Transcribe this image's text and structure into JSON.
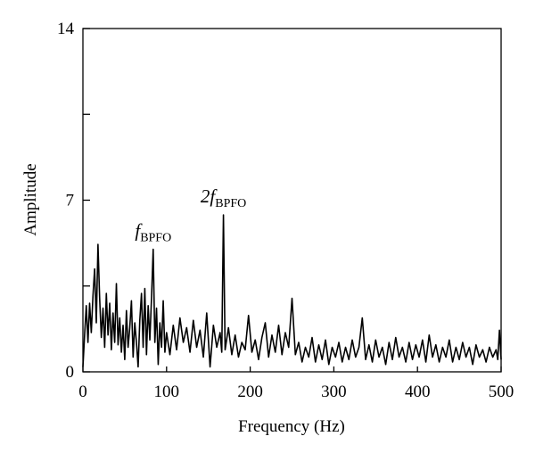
{
  "chart_data": {
    "type": "line",
    "x_label": "Frequency (Hz)",
    "y_label": "Amplitude",
    "x": [
      0,
      2,
      4,
      6,
      8,
      10,
      12,
      14,
      16,
      18,
      20,
      22,
      24,
      26,
      28,
      30,
      32,
      34,
      36,
      38,
      40,
      42,
      44,
      46,
      48,
      50,
      52,
      54,
      56,
      58,
      60,
      62,
      64,
      66,
      68,
      70,
      72,
      74,
      76,
      78,
      80,
      82,
      84,
      86,
      88,
      90,
      92,
      94,
      96,
      98,
      100,
      104,
      108,
      112,
      116,
      120,
      124,
      128,
      132,
      136,
      140,
      144,
      148,
      152,
      156,
      160,
      164,
      166,
      168,
      170,
      174,
      178,
      182,
      186,
      190,
      194,
      198,
      202,
      206,
      210,
      214,
      218,
      222,
      226,
      230,
      234,
      238,
      242,
      246,
      250,
      254,
      258,
      262,
      266,
      270,
      274,
      278,
      282,
      286,
      290,
      294,
      298,
      302,
      306,
      310,
      314,
      318,
      322,
      326,
      330,
      334,
      338,
      342,
      346,
      350,
      354,
      358,
      362,
      366,
      370,
      374,
      378,
      382,
      386,
      390,
      394,
      398,
      402,
      406,
      410,
      414,
      418,
      422,
      426,
      430,
      434,
      438,
      442,
      446,
      450,
      454,
      458,
      462,
      466,
      470,
      474,
      478,
      482,
      486,
      490,
      494,
      496,
      498,
      500
    ],
    "values": [
      0.2,
      1.5,
      2.7,
      1.2,
      2.8,
      1.6,
      3.1,
      4.2,
      2.0,
      5.2,
      3.0,
      1.4,
      2.6,
      1.0,
      3.2,
      1.5,
      2.8,
      0.9,
      2.4,
      1.2,
      3.6,
      1.1,
      2.2,
      0.8,
      1.9,
      0.5,
      2.5,
      1.0,
      1.8,
      2.9,
      0.6,
      2.0,
      1.2,
      0.2,
      2.1,
      3.2,
      1.0,
      3.4,
      0.7,
      2.7,
      1.3,
      3.0,
      5.0,
      1.2,
      2.6,
      0.3,
      2.0,
      1.0,
      2.9,
      0.8,
      1.6,
      0.7,
      1.9,
      0.9,
      2.2,
      1.2,
      1.8,
      0.8,
      2.1,
      1.0,
      1.7,
      0.6,
      2.4,
      0.2,
      1.9,
      1.0,
      1.6,
      0.8,
      6.4,
      0.9,
      1.8,
      0.7,
      1.5,
      0.6,
      1.2,
      0.9,
      2.3,
      0.8,
      1.3,
      0.5,
      1.4,
      2.0,
      0.6,
      1.5,
      0.8,
      1.9,
      0.7,
      1.6,
      1.0,
      3.0,
      0.7,
      1.2,
      0.4,
      1.0,
      0.6,
      1.4,
      0.4,
      1.1,
      0.5,
      1.3,
      0.3,
      1.0,
      0.6,
      1.2,
      0.4,
      1.0,
      0.5,
      1.3,
      0.6,
      1.0,
      2.2,
      0.5,
      1.1,
      0.4,
      1.3,
      0.6,
      1.0,
      0.3,
      1.2,
      0.5,
      1.4,
      0.6,
      1.0,
      0.4,
      1.2,
      0.5,
      1.1,
      0.6,
      1.3,
      0.4,
      1.5,
      0.6,
      1.1,
      0.4,
      1.0,
      0.6,
      1.3,
      0.4,
      1.0,
      0.5,
      1.2,
      0.6,
      1.0,
      0.3,
      1.1,
      0.6,
      0.9,
      0.4,
      1.0,
      0.6,
      0.9,
      0.5,
      1.7,
      0.5
    ],
    "color": "#000000",
    "xlim": [
      0,
      500
    ],
    "xticks": [
      0,
      100,
      200,
      300,
      400,
      500
    ],
    "ylim": [
      0,
      14
    ],
    "yticks": [
      0,
      7,
      14
    ],
    "yminor_ticks": [
      3.5,
      10.5
    ],
    "annotations": [
      {
        "text": "f",
        "subscript": "BPFO",
        "x": 84,
        "y": 5.0
      },
      {
        "text": "2f",
        "subscript": "BPFO",
        "x": 168,
        "y": 6.4
      }
    ]
  }
}
